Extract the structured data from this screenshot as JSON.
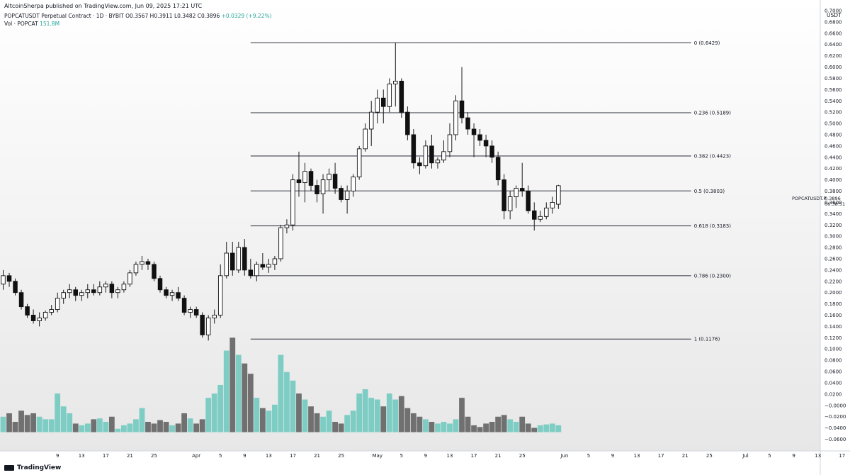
{
  "header": {
    "publisher": "AltcoinSherpa published on TradingView.com, Jun 09, 2025 17:21 UTC",
    "symbol": "POPCATUSDT Perpetual Contract · 1D · BYBIT",
    "ohlc": "O0.3567  H0.3911  L0.3482  C0.3896",
    "change": "+0.0329 (+9.22%)",
    "vol_label": "Vol · POPCAT",
    "vol_value": "151.8M"
  },
  "price_axis": {
    "unit": "USDT",
    "symbol_tag": "POPCATUSDT.P",
    "last_price": "0.3896",
    "countdown": "06:38:51"
  },
  "footer": {
    "logo": "TradingView"
  },
  "chart_data": {
    "type": "candlestick",
    "ylim": [
      -0.06,
      0.7
    ],
    "y_ticks": [
      "0.7000",
      "0.6800",
      "0.6600",
      "0.6400",
      "0.6200",
      "0.6000",
      "0.5800",
      "0.5600",
      "0.5400",
      "0.5200",
      "0.5000",
      "0.4800",
      "0.4600",
      "0.4400",
      "0.4200",
      "0.4000",
      "0.3800",
      "0.3600",
      "0.3400",
      "0.3200",
      "0.3000",
      "0.2800",
      "0.2600",
      "0.2400",
      "0.2200",
      "0.2000",
      "0.1800",
      "0.1600",
      "0.1400",
      "0.1200",
      "0.1000",
      "0.0800",
      "0.0600",
      "0.0400",
      "0.0200",
      "−0.0000",
      "−0.0200",
      "−0.0400",
      "−0.0600"
    ],
    "x_ticks": [
      {
        "label": "9",
        "day": 9
      },
      {
        "label": "13",
        "day": 13
      },
      {
        "label": "17",
        "day": 17
      },
      {
        "label": "21",
        "day": 21
      },
      {
        "label": "25",
        "day": 25
      },
      {
        "label": "Apr",
        "day": 32
      },
      {
        "label": "5",
        "day": 36
      },
      {
        "label": "9",
        "day": 40
      },
      {
        "label": "13",
        "day": 44
      },
      {
        "label": "17",
        "day": 48
      },
      {
        "label": "21",
        "day": 52
      },
      {
        "label": "25",
        "day": 56
      },
      {
        "label": "May",
        "day": 62
      },
      {
        "label": "5",
        "day": 66
      },
      {
        "label": "9",
        "day": 70
      },
      {
        "label": "13",
        "day": 74
      },
      {
        "label": "17",
        "day": 78
      },
      {
        "label": "21",
        "day": 82
      },
      {
        "label": "25",
        "day": 86
      },
      {
        "label": "Jun",
        "day": 93
      },
      {
        "label": "5",
        "day": 97
      },
      {
        "label": "9",
        "day": 101
      },
      {
        "label": "13",
        "day": 105
      },
      {
        "label": "17",
        "day": 109
      },
      {
        "label": "21",
        "day": 113
      },
      {
        "label": "25",
        "day": 117
      },
      {
        "label": "Jul",
        "day": 123
      },
      {
        "label": "5",
        "day": 127
      },
      {
        "label": "9",
        "day": 131
      },
      {
        "label": "13",
        "day": 135
      },
      {
        "label": "17",
        "day": 139
      }
    ],
    "fib_levels": [
      {
        "label": "0 (0.6429)",
        "price": 0.6429
      },
      {
        "label": "0.236 (0.5189)",
        "price": 0.5189
      },
      {
        "label": "0.382 (0.4423)",
        "price": 0.4423
      },
      {
        "label": "0.5 (0.3803)",
        "price": 0.3803
      },
      {
        "label": "0.618 (0.3183)",
        "price": 0.3183
      },
      {
        "label": "0.786 (0.2300)",
        "price": 0.23
      },
      {
        "label": "1 (0.1176)",
        "price": 0.1176
      }
    ],
    "fib_start_day": 41,
    "fib_end_day": 114,
    "candles": [
      [
        0.215,
        0.24,
        0.205,
        0.23,
        0.018
      ],
      [
        0.23,
        0.235,
        0.21,
        0.22,
        0.022
      ],
      [
        0.22,
        0.225,
        0.195,
        0.2,
        0.012
      ],
      [
        0.2,
        0.205,
        0.17,
        0.175,
        0.025
      ],
      [
        0.175,
        0.18,
        0.155,
        0.16,
        0.02
      ],
      [
        0.16,
        0.17,
        0.145,
        0.15,
        0.022
      ],
      [
        0.15,
        0.165,
        0.14,
        0.155,
        0.018
      ],
      [
        0.155,
        0.168,
        0.15,
        0.165,
        0.015
      ],
      [
        0.165,
        0.178,
        0.16,
        0.17,
        0.015
      ],
      [
        0.17,
        0.2,
        0.165,
        0.19,
        0.045
      ],
      [
        0.19,
        0.205,
        0.18,
        0.2,
        0.03
      ],
      [
        0.2,
        0.215,
        0.19,
        0.205,
        0.022
      ],
      [
        0.205,
        0.21,
        0.185,
        0.195,
        0.01
      ],
      [
        0.195,
        0.205,
        0.185,
        0.2,
        0.008
      ],
      [
        0.2,
        0.215,
        0.19,
        0.205,
        0.01
      ],
      [
        0.205,
        0.215,
        0.195,
        0.2,
        0.015
      ],
      [
        0.2,
        0.22,
        0.195,
        0.21,
        0.016
      ],
      [
        0.21,
        0.22,
        0.2,
        0.215,
        0.012
      ],
      [
        0.215,
        0.22,
        0.19,
        0.2,
        0.018
      ],
      [
        0.2,
        0.21,
        0.19,
        0.205,
        0.004
      ],
      [
        0.205,
        0.22,
        0.2,
        0.215,
        0.008
      ],
      [
        0.215,
        0.24,
        0.21,
        0.235,
        0.01
      ],
      [
        0.235,
        0.255,
        0.23,
        0.25,
        0.015
      ],
      [
        0.25,
        0.265,
        0.24,
        0.255,
        0.028
      ],
      [
        0.255,
        0.26,
        0.24,
        0.25,
        0.012
      ],
      [
        0.25,
        0.255,
        0.22,
        0.225,
        0.01
      ],
      [
        0.225,
        0.23,
        0.2,
        0.205,
        0.014
      ],
      [
        0.205,
        0.21,
        0.19,
        0.195,
        0.012
      ],
      [
        0.195,
        0.205,
        0.185,
        0.2,
        0.008
      ],
      [
        0.2,
        0.21,
        0.185,
        0.19,
        0.01
      ],
      [
        0.19,
        0.195,
        0.16,
        0.165,
        0.022
      ],
      [
        0.165,
        0.175,
        0.155,
        0.17,
        0.016
      ],
      [
        0.17,
        0.175,
        0.155,
        0.16,
        0.01
      ],
      [
        0.16,
        0.165,
        0.12,
        0.125,
        0.015
      ],
      [
        0.125,
        0.16,
        0.115,
        0.155,
        0.04
      ],
      [
        0.155,
        0.17,
        0.145,
        0.16,
        0.045
      ],
      [
        0.16,
        0.25,
        0.155,
        0.23,
        0.055
      ],
      [
        0.23,
        0.29,
        0.225,
        0.27,
        0.095
      ],
      [
        0.27,
        0.29,
        0.23,
        0.24,
        0.11
      ],
      [
        0.24,
        0.29,
        0.235,
        0.28,
        0.09
      ],
      [
        0.28,
        0.295,
        0.23,
        0.24,
        0.08
      ],
      [
        0.24,
        0.26,
        0.225,
        0.23,
        0.068
      ],
      [
        0.23,
        0.255,
        0.22,
        0.25,
        0.04
      ],
      [
        0.25,
        0.27,
        0.24,
        0.245,
        0.028
      ],
      [
        0.245,
        0.26,
        0.235,
        0.25,
        0.025
      ],
      [
        0.25,
        0.265,
        0.24,
        0.26,
        0.032
      ],
      [
        0.26,
        0.32,
        0.255,
        0.315,
        0.09
      ],
      [
        0.315,
        0.33,
        0.305,
        0.32,
        0.07
      ],
      [
        0.32,
        0.41,
        0.31,
        0.4,
        0.06
      ],
      [
        0.4,
        0.45,
        0.37,
        0.395,
        0.045
      ],
      [
        0.395,
        0.43,
        0.36,
        0.415,
        0.038
      ],
      [
        0.415,
        0.42,
        0.38,
        0.39,
        0.03
      ],
      [
        0.39,
        0.4,
        0.36,
        0.375,
        0.022
      ],
      [
        0.375,
        0.41,
        0.34,
        0.4,
        0.018
      ],
      [
        0.4,
        0.42,
        0.38,
        0.41,
        0.025
      ],
      [
        0.41,
        0.43,
        0.375,
        0.385,
        0.012
      ],
      [
        0.385,
        0.39,
        0.36,
        0.365,
        0.01
      ],
      [
        0.365,
        0.39,
        0.34,
        0.38,
        0.02
      ],
      [
        0.38,
        0.41,
        0.37,
        0.405,
        0.025
      ],
      [
        0.405,
        0.46,
        0.4,
        0.455,
        0.045
      ],
      [
        0.455,
        0.5,
        0.45,
        0.49,
        0.05
      ],
      [
        0.49,
        0.54,
        0.46,
        0.52,
        0.04
      ],
      [
        0.52,
        0.56,
        0.5,
        0.545,
        0.038
      ],
      [
        0.545,
        0.56,
        0.5,
        0.53,
        0.03
      ],
      [
        0.53,
        0.58,
        0.52,
        0.57,
        0.045
      ],
      [
        0.57,
        0.643,
        0.53,
        0.575,
        0.038
      ],
      [
        0.575,
        0.58,
        0.51,
        0.52,
        0.042
      ],
      [
        0.52,
        0.53,
        0.47,
        0.48,
        0.028
      ],
      [
        0.48,
        0.49,
        0.42,
        0.43,
        0.022
      ],
      [
        0.43,
        0.44,
        0.41,
        0.425,
        0.018
      ],
      [
        0.425,
        0.47,
        0.42,
        0.46,
        0.015
      ],
      [
        0.46,
        0.48,
        0.42,
        0.43,
        0.012
      ],
      [
        0.43,
        0.44,
        0.42,
        0.435,
        0.01
      ],
      [
        0.435,
        0.47,
        0.43,
        0.45,
        0.012
      ],
      [
        0.45,
        0.5,
        0.44,
        0.48,
        0.01
      ],
      [
        0.48,
        0.55,
        0.47,
        0.54,
        0.015
      ],
      [
        0.54,
        0.6,
        0.5,
        0.51,
        0.04
      ],
      [
        0.51,
        0.52,
        0.48,
        0.49,
        0.018
      ],
      [
        0.49,
        0.5,
        0.44,
        0.48,
        0.008
      ],
      [
        0.48,
        0.49,
        0.46,
        0.47,
        0.006
      ],
      [
        0.47,
        0.48,
        0.44,
        0.46,
        0.01
      ],
      [
        0.46,
        0.47,
        0.43,
        0.44,
        0.012
      ],
      [
        0.44,
        0.45,
        0.39,
        0.4,
        0.018
      ],
      [
        0.4,
        0.41,
        0.33,
        0.345,
        0.02
      ],
      [
        0.345,
        0.38,
        0.33,
        0.37,
        0.015
      ],
      [
        0.37,
        0.39,
        0.35,
        0.385,
        0.012
      ],
      [
        0.385,
        0.43,
        0.37,
        0.38,
        0.018
      ],
      [
        0.38,
        0.39,
        0.34,
        0.345,
        0.01
      ],
      [
        0.345,
        0.36,
        0.31,
        0.33,
        0.005
      ],
      [
        0.33,
        0.345,
        0.325,
        0.335,
        0.008
      ],
      [
        0.335,
        0.36,
        0.33,
        0.35,
        0.009
      ],
      [
        0.35,
        0.37,
        0.34,
        0.36,
        0.01
      ],
      [
        0.3567,
        0.3911,
        0.3482,
        0.3896,
        0.008
      ]
    ]
  }
}
